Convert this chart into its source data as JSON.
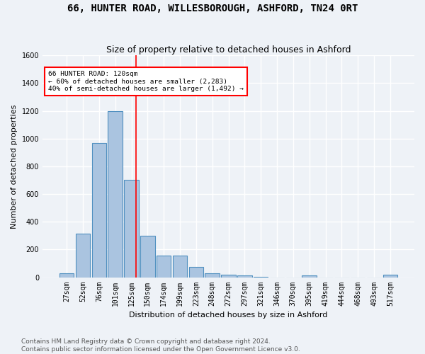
{
  "title": "66, HUNTER ROAD, WILLESBOROUGH, ASHFORD, TN24 0RT",
  "subtitle": "Size of property relative to detached houses in Ashford",
  "xlabel": "Distribution of detached houses by size in Ashford",
  "ylabel": "Number of detached properties",
  "categories": [
    "27sqm",
    "52sqm",
    "76sqm",
    "101sqm",
    "125sqm",
    "150sqm",
    "174sqm",
    "199sqm",
    "223sqm",
    "248sqm",
    "272sqm",
    "297sqm",
    "321sqm",
    "346sqm",
    "370sqm",
    "395sqm",
    "419sqm",
    "444sqm",
    "468sqm",
    "493sqm",
    "517sqm"
  ],
  "values": [
    30,
    315,
    970,
    1200,
    700,
    300,
    155,
    155,
    75,
    30,
    20,
    15,
    5,
    0,
    0,
    12,
    0,
    0,
    0,
    0,
    20
  ],
  "bar_color": "#aac4e0",
  "bar_edge_color": "#5090c0",
  "red_line_x": 4.3,
  "annotation_title": "66 HUNTER ROAD: 120sqm",
  "annotation_line1": "← 60% of detached houses are smaller (2,283)",
  "annotation_line2": "40% of semi-detached houses are larger (1,492) →",
  "ylim": [
    0,
    1600
  ],
  "yticks": [
    0,
    200,
    400,
    600,
    800,
    1000,
    1200,
    1400,
    1600
  ],
  "footer1": "Contains HM Land Registry data © Crown copyright and database right 2024.",
  "footer2": "Contains public sector information licensed under the Open Government Licence v3.0.",
  "bg_color": "#eef2f7",
  "grid_color": "#ffffff",
  "title_fontsize": 10,
  "subtitle_fontsize": 9,
  "axis_label_fontsize": 8,
  "tick_fontsize": 7,
  "footer_fontsize": 6.5
}
